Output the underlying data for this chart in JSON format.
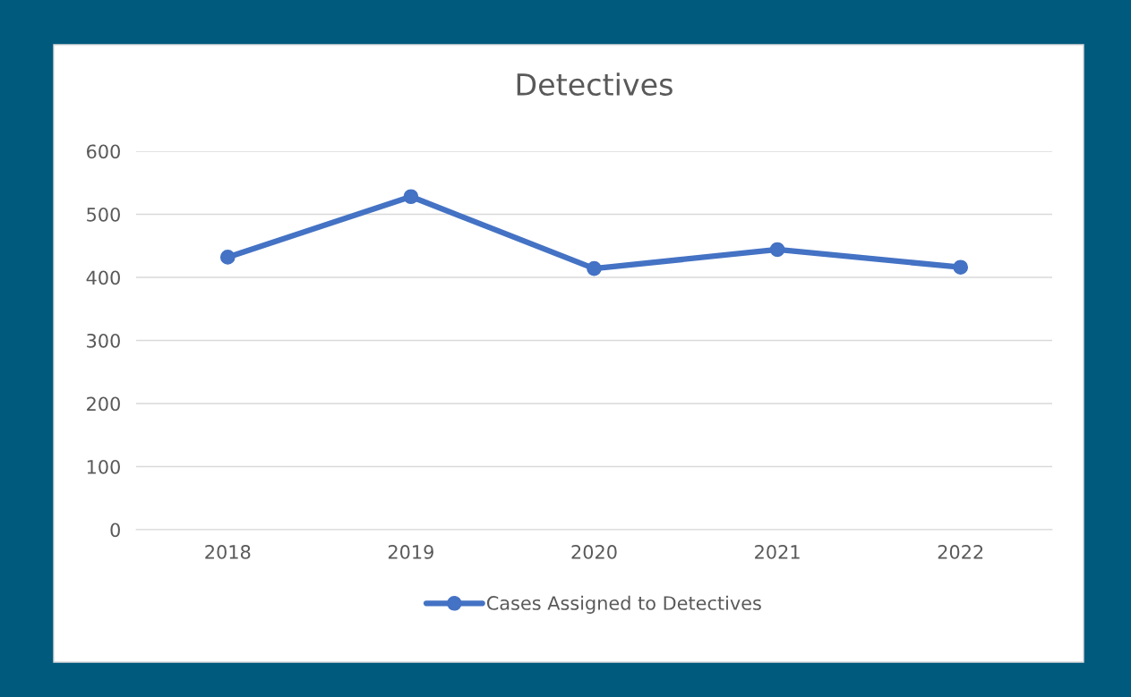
{
  "chart_data": {
    "type": "line",
    "title": "Detectives",
    "categories": [
      "2018",
      "2019",
      "2020",
      "2021",
      "2022"
    ],
    "series": [
      {
        "name": "Cases Assigned to Detectives",
        "color": "#4472c4",
        "values": [
          432,
          528,
          414,
          444,
          416
        ]
      }
    ],
    "ylim": [
      0,
      600
    ],
    "yticks": [
      0,
      100,
      200,
      300,
      400,
      500,
      600
    ],
    "grid": "y",
    "legend": "bottom",
    "marker": "circle",
    "line_style": "solid"
  }
}
